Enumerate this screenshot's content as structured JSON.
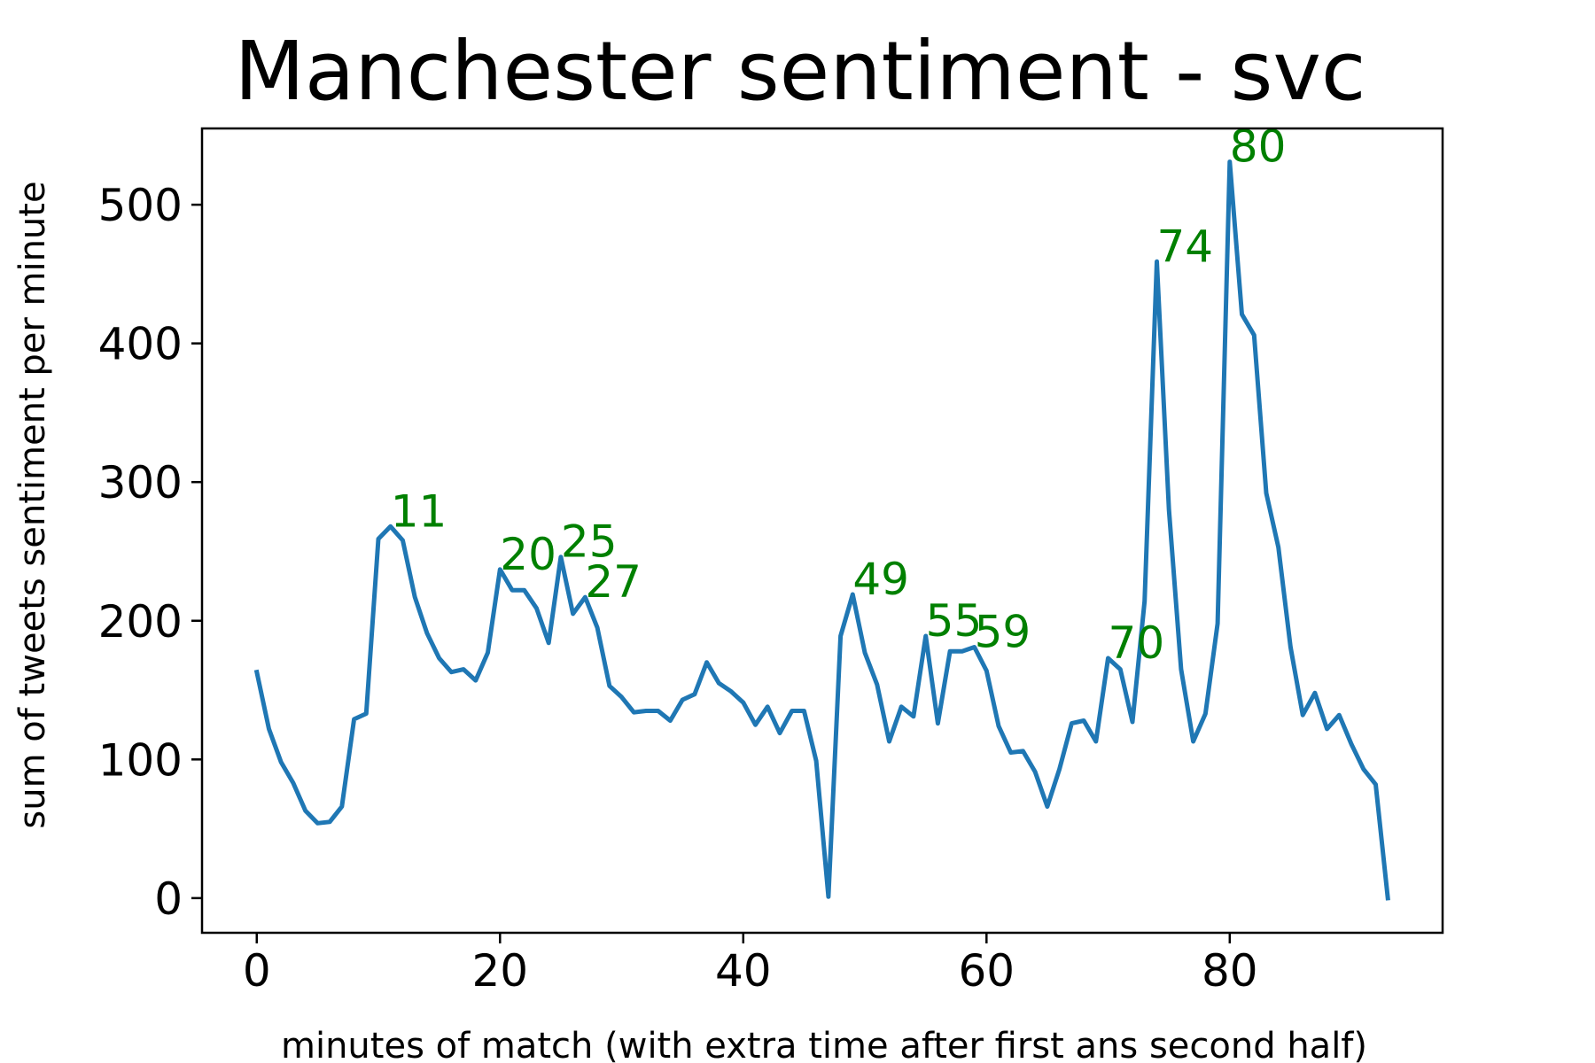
{
  "chart_data": {
    "type": "line",
    "title": "Manchester sentiment - svc",
    "xlabel": "minutes of match (with extra time after first ans second half)",
    "ylabel": "sum of tweets sentiment per minute",
    "xlim": [
      -4.5,
      97.5
    ],
    "ylim": [
      -25,
      555
    ],
    "xticks": [
      0,
      20,
      40,
      60,
      80
    ],
    "xtick_labels": [
      "0",
      "20",
      "40",
      "60",
      "80"
    ],
    "yticks": [
      0,
      100,
      200,
      300,
      400,
      500
    ],
    "ytick_labels": [
      "0",
      "100",
      "200",
      "300",
      "400",
      "500"
    ],
    "grid": false,
    "series": [
      {
        "name": "sentiment",
        "color": "#1f77b4",
        "x": [
          0,
          1,
          2,
          3,
          4,
          5,
          6,
          7,
          8,
          9,
          10,
          11,
          12,
          13,
          14,
          15,
          16,
          17,
          18,
          19,
          20,
          21,
          22,
          23,
          24,
          25,
          26,
          27,
          28,
          29,
          30,
          31,
          32,
          33,
          34,
          35,
          36,
          37,
          38,
          39,
          40,
          41,
          42,
          43,
          44,
          45,
          46,
          47,
          48,
          49,
          50,
          51,
          52,
          53,
          54,
          55,
          56,
          57,
          58,
          59,
          60,
          61,
          62,
          63,
          64,
          65,
          66,
          67,
          68,
          69,
          70,
          71,
          72,
          73,
          74,
          75,
          76,
          77,
          78,
          79,
          80,
          81,
          82,
          83,
          84,
          85,
          86,
          87,
          88,
          89,
          90,
          91,
          92,
          93
        ],
        "values": [
          163,
          122,
          98,
          83,
          63,
          54,
          55,
          66,
          129,
          133,
          259,
          268,
          258,
          217,
          191,
          173,
          163,
          165,
          157,
          177,
          237,
          222,
          222,
          209,
          184,
          246,
          205,
          217,
          195,
          153,
          145,
          134,
          135,
          135,
          128,
          143,
          147,
          170,
          155,
          149,
          141,
          125,
          138,
          119,
          135,
          135,
          99,
          1,
          189,
          219,
          177,
          154,
          113,
          138,
          131,
          189,
          126,
          178,
          178,
          181,
          164,
          124,
          105,
          106,
          91,
          66,
          93,
          126,
          128,
          113,
          173,
          165,
          127,
          214,
          459,
          280,
          165,
          113,
          133,
          198,
          531,
          421,
          406,
          292,
          253,
          181,
          132,
          148,
          122,
          132,
          111,
          93,
          82,
          0
        ]
      }
    ],
    "annotations": [
      {
        "text": "11",
        "x": 11,
        "y": 268
      },
      {
        "text": "20",
        "x": 20,
        "y": 237
      },
      {
        "text": "25",
        "x": 25,
        "y": 246
      },
      {
        "text": "27",
        "x": 27,
        "y": 217
      },
      {
        "text": "49",
        "x": 49,
        "y": 219
      },
      {
        "text": "55",
        "x": 55,
        "y": 189
      },
      {
        "text": "59",
        "x": 59,
        "y": 181
      },
      {
        "text": "70",
        "x": 70,
        "y": 173
      },
      {
        "text": "74",
        "x": 74,
        "y": 459
      },
      {
        "text": "80",
        "x": 80,
        "y": 531
      }
    ],
    "annotation_color": "#008000"
  }
}
